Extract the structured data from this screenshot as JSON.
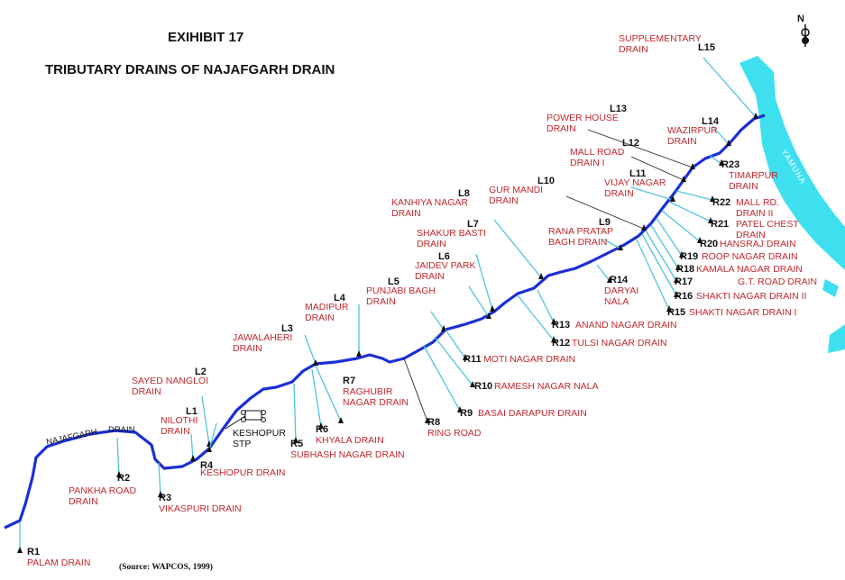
{
  "title": "EXIHIBIT 17",
  "subtitle": "TRIBUTARY DRAINS OF NAJAFGARH DRAIN",
  "source": "(Source: WAPCOS, 1999)",
  "north_label": "N",
  "river_label": "YAMUNA",
  "main_drain_label_1": "NAJAFGARH",
  "main_drain_label_2": "DRAIN",
  "stp_label_1": "KESHOPUR",
  "stp_label_2": "STP",
  "colors": {
    "main_drain": "#1a2fd6",
    "tributary": "#4fc3e0",
    "river": "#3ee0f0",
    "label_red": "#c0282d",
    "label_black": "#111111"
  },
  "drains": [
    {
      "code": "L1",
      "name": [
        "NILOTHI",
        "DRAIN"
      ]
    },
    {
      "code": "L2",
      "name": [
        "SAYED NANGLOI",
        "DRAIN"
      ]
    },
    {
      "code": "L3",
      "name": [
        "JAWALAHERI",
        "DRAIN"
      ]
    },
    {
      "code": "L4",
      "name": [
        "MADIPUR",
        "DRAIN"
      ]
    },
    {
      "code": "L5",
      "name": [
        "PUNJABI BAGH",
        "DRAIN"
      ]
    },
    {
      "code": "L6",
      "name": [
        "JAIDEV PARK",
        "DRAIN"
      ]
    },
    {
      "code": "L7",
      "name": [
        "SHAKUR BASTI",
        "DRAIN"
      ]
    },
    {
      "code": "L8",
      "name": [
        "KANHIYA NAGAR",
        "DRAIN"
      ]
    },
    {
      "code": "L9",
      "name": [
        "RANA PRATAP",
        "BAGH DRAIN"
      ]
    },
    {
      "code": "L10",
      "name": [
        "GUR MANDI",
        "DRAIN"
      ]
    },
    {
      "code": "L11",
      "name": [
        "VIJAY NAGAR",
        "DRAIN"
      ]
    },
    {
      "code": "L12",
      "name": [
        "MALL ROAD",
        "DRAIN I"
      ]
    },
    {
      "code": "L13",
      "name": [
        "POWER HOUSE",
        "DRAIN"
      ]
    },
    {
      "code": "L14",
      "name": [
        "WAZIRPUR",
        "DRAIN"
      ]
    },
    {
      "code": "L15",
      "name": [
        "SUPPLEMENTARY",
        "DRAIN"
      ]
    },
    {
      "code": "R1",
      "name": [
        "PALAM DRAIN"
      ]
    },
    {
      "code": "R2",
      "name": [
        "PANKHA ROAD",
        "DRAIN"
      ]
    },
    {
      "code": "R3",
      "name": [
        "VIKASPURI DRAIN"
      ]
    },
    {
      "code": "R4",
      "name": [
        "KESHOPUR DRAIN"
      ]
    },
    {
      "code": "R5",
      "name": [
        "SUBHASH NAGAR DRAIN"
      ]
    },
    {
      "code": "R6",
      "name": [
        "KHYALA DRAIN"
      ]
    },
    {
      "code": "R7",
      "name": [
        "RAGHUBIR",
        "NAGAR DRAIN"
      ]
    },
    {
      "code": "R8",
      "name": [
        "RING ROAD"
      ]
    },
    {
      "code": "R9",
      "name": [
        "BASAI DARAPUR DRAIN"
      ]
    },
    {
      "code": "R10",
      "name": [
        "RAMESH NAGAR NALA"
      ]
    },
    {
      "code": "R11",
      "name": [
        "MOTI NAGAR DRAIN"
      ]
    },
    {
      "code": "R12",
      "name": [
        "TULSI NAGAR DRAIN"
      ]
    },
    {
      "code": "R13",
      "name": [
        "ANAND NAGAR DRAIN"
      ]
    },
    {
      "code": "R14",
      "name": [
        "DARYAI",
        "NALA"
      ]
    },
    {
      "code": "R15",
      "name": [
        "SHAKTI NAGAR DRAIN I"
      ]
    },
    {
      "code": "R16",
      "name": [
        "SHAKTI NAGAR DRAIN II"
      ]
    },
    {
      "code": "R17",
      "name": [
        "G.T. ROAD DRAIN"
      ]
    },
    {
      "code": "R18",
      "name": [
        "KAMALA NAGAR DRAIN"
      ]
    },
    {
      "code": "R19",
      "name": [
        "ROOP NAGAR DRAIN"
      ]
    },
    {
      "code": "R20",
      "name": [
        "HANSRAJ DRAIN"
      ]
    },
    {
      "code": "R21",
      "name": [
        "PATEL CHEST",
        "DRAIN"
      ]
    },
    {
      "code": "R22",
      "name": [
        "MALL RD.",
        "DRAIN II"
      ]
    },
    {
      "code": "R23",
      "name": [
        "TIMARPUR",
        "DRAIN"
      ]
    }
  ]
}
